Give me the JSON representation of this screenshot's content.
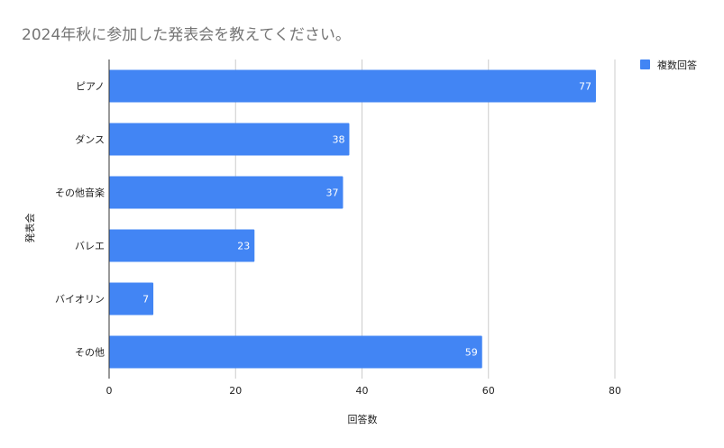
{
  "chart_data": {
    "type": "bar",
    "orientation": "horizontal",
    "title": "2024年秋に参加した発表会を教えてください。",
    "xlabel": "回答数",
    "ylabel": "発表会",
    "categories": [
      "ピアノ",
      "ダンス",
      "その他音楽",
      "バレエ",
      "バイオリン",
      "その他"
    ],
    "series": [
      {
        "name": "複数回答",
        "values": [
          77,
          38,
          37,
          23,
          7,
          59
        ],
        "color": "#4285F4"
      }
    ],
    "xlim": [
      0,
      80
    ],
    "x_ticks": [
      "0",
      "20",
      "40",
      "60",
      "80"
    ],
    "grid": true,
    "legend_position": "top-right",
    "data_labels": true
  }
}
